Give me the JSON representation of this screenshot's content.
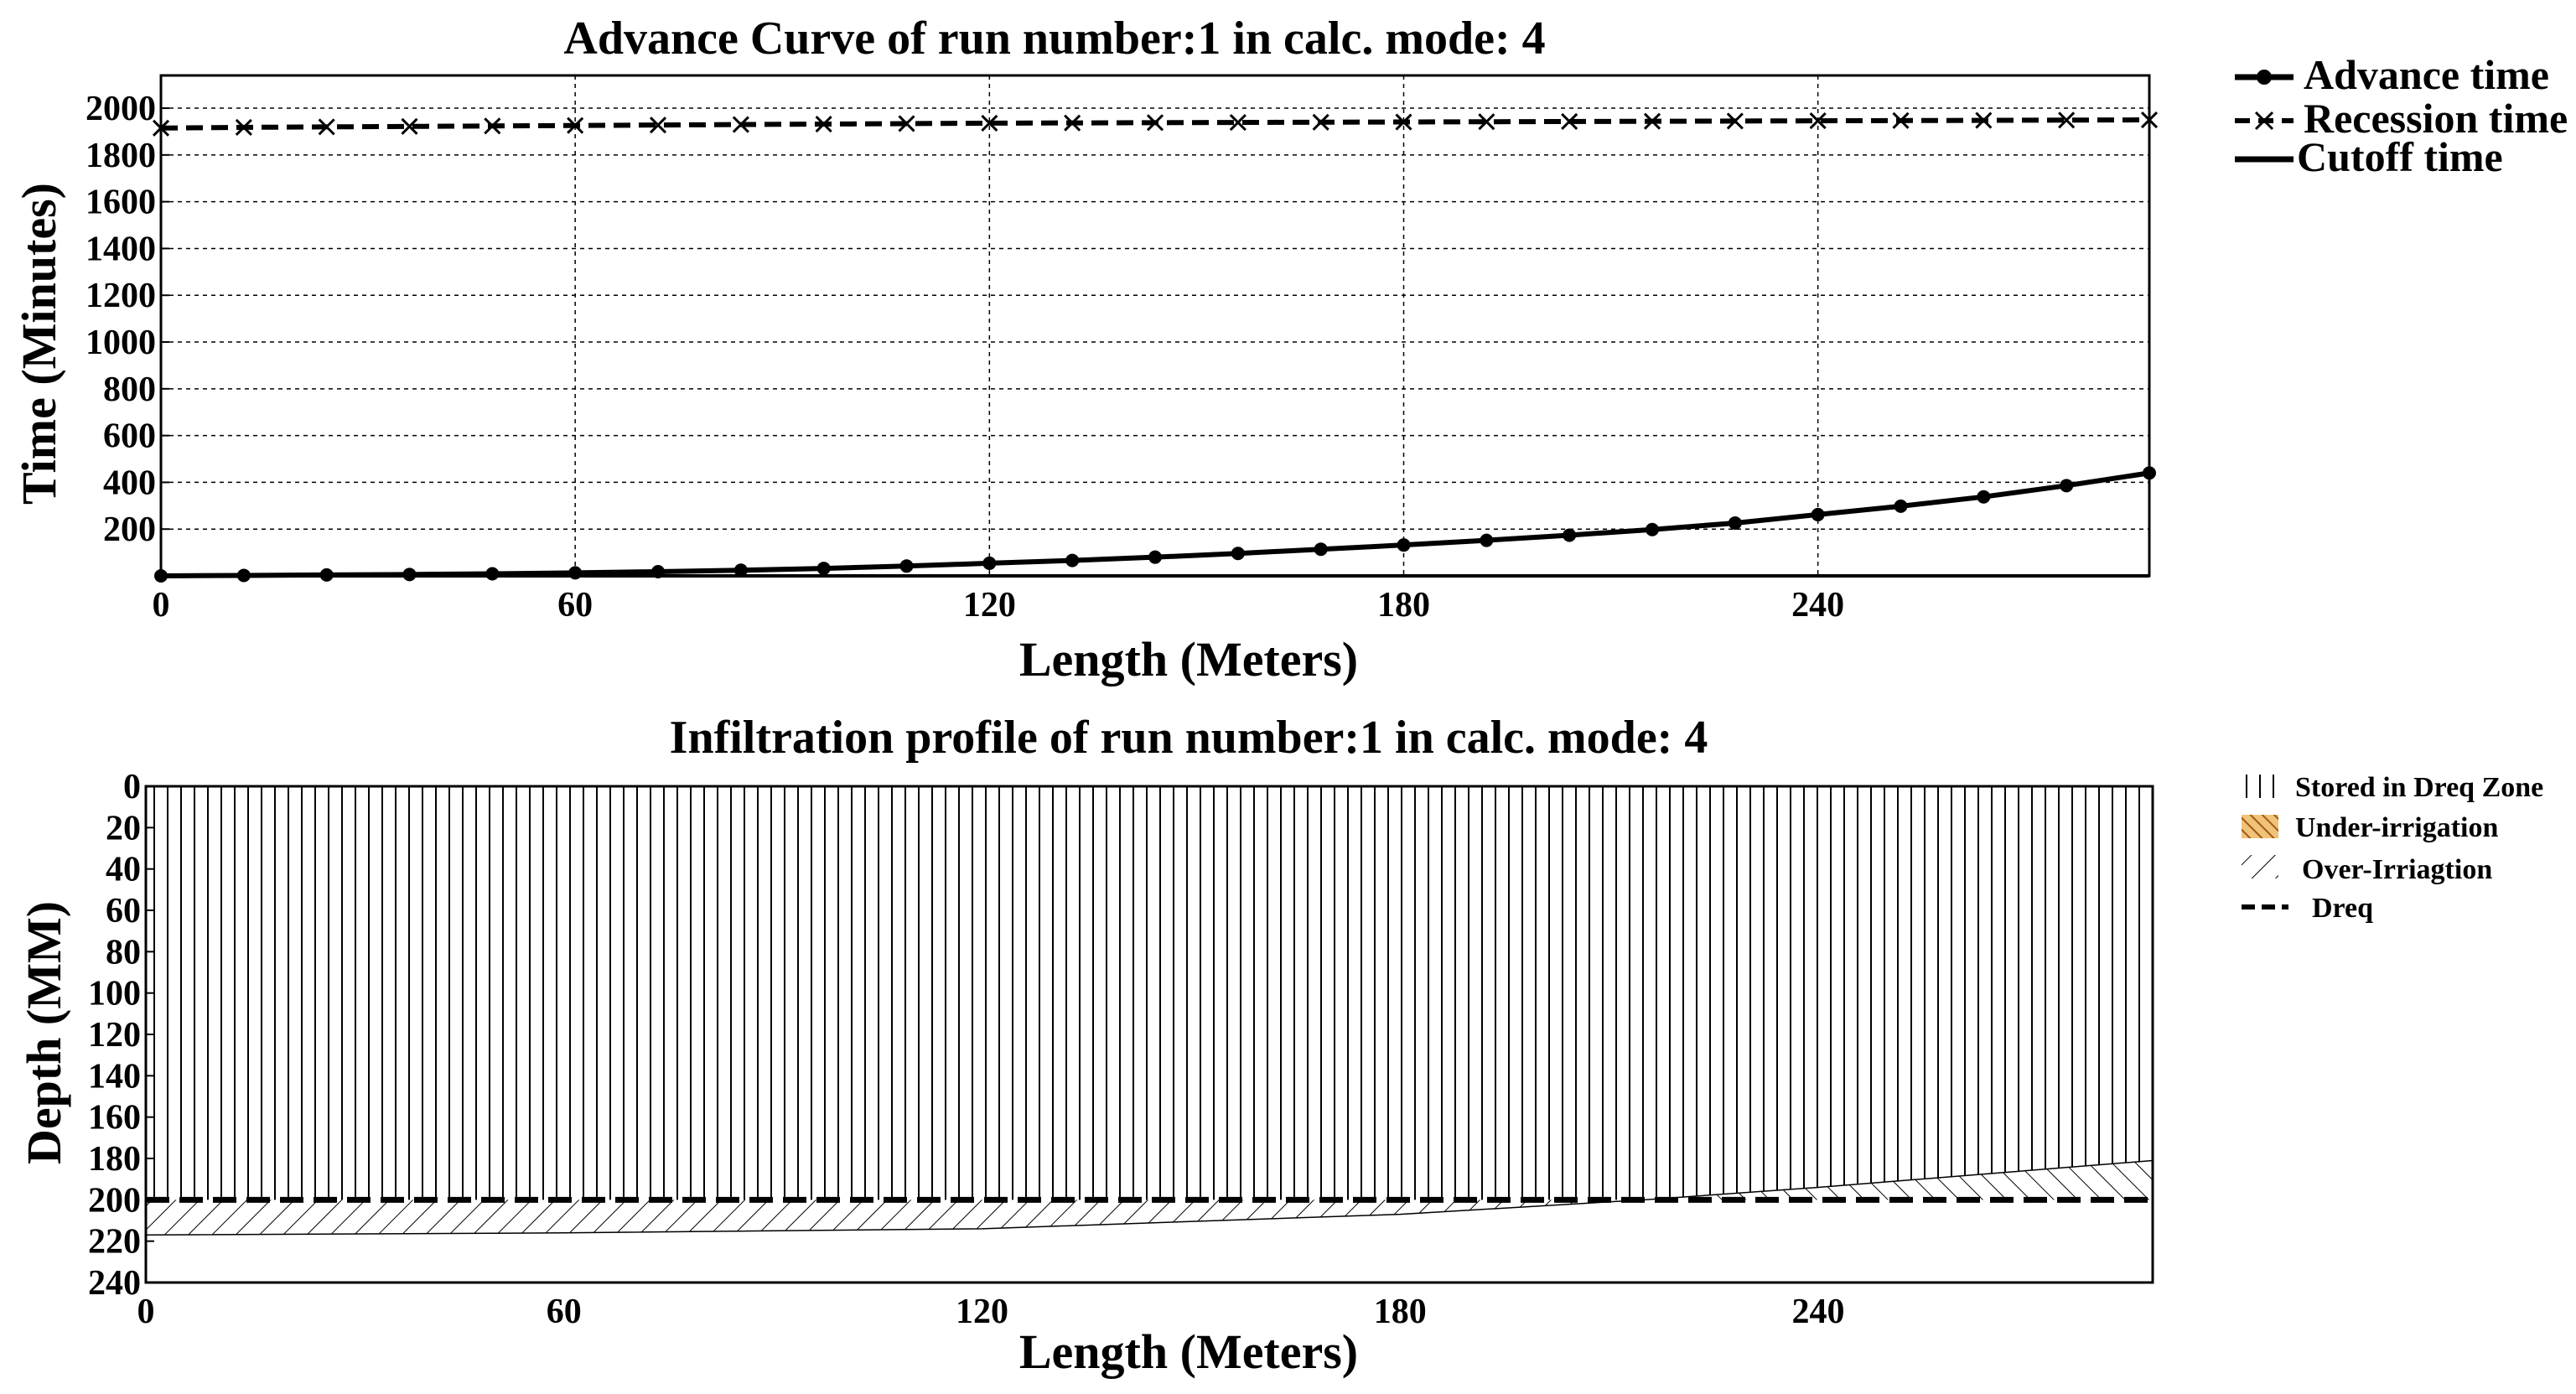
{
  "chart_data": [
    {
      "type": "line",
      "title": "Advance Curve of run number:1 in calc. mode: 4",
      "xlabel": "Length (Meters)",
      "ylabel": "Time (Minutes)",
      "xlim": [
        0,
        288
      ],
      "ylim": [
        0,
        2140
      ],
      "x_ticks": [
        0,
        60,
        120,
        180,
        240
      ],
      "y_ticks": [
        200,
        400,
        600,
        800,
        1000,
        1200,
        1400,
        1600,
        1800,
        2000
      ],
      "grid": true,
      "legend": {
        "position": "right-top",
        "entries": [
          "Advance time",
          "Recession time",
          "Cutoff time"
        ]
      },
      "series": [
        {
          "name": "Advance time",
          "x": [
            0,
            12,
            24,
            36,
            48,
            60,
            72,
            84,
            96,
            108,
            120,
            132,
            144,
            156,
            168,
            180,
            192,
            204,
            216,
            228,
            240,
            252,
            264,
            276,
            288
          ],
          "y": [
            0,
            2,
            4,
            6,
            9,
            13,
            18,
            24,
            32,
            42,
            54,
            66,
            80,
            96,
            114,
            132,
            152,
            174,
            198,
            226,
            262,
            298,
            338,
            386,
            440
          ]
        },
        {
          "name": "Recession time",
          "x": [
            0,
            12,
            24,
            36,
            48,
            60,
            72,
            84,
            96,
            108,
            120,
            132,
            144,
            156,
            168,
            180,
            192,
            204,
            216,
            228,
            240,
            252,
            264,
            276,
            288
          ],
          "y": [
            1915,
            1918,
            1920,
            1922,
            1924,
            1926,
            1928,
            1930,
            1932,
            1934,
            1936,
            1937,
            1938,
            1939,
            1940,
            1941,
            1942,
            1943,
            1944,
            1945,
            1946,
            1947,
            1948,
            1949,
            1950
          ]
        },
        {
          "name": "Cutoff time",
          "x": [
            0,
            288
          ],
          "y": [
            0,
            0
          ]
        }
      ]
    },
    {
      "type": "area",
      "title": "Infiltration profile of run number:1 in calc. mode: 4",
      "xlabel": "Length (Meters)",
      "ylabel": "Depth (MM)",
      "xlim": [
        0,
        288
      ],
      "ylim": [
        0,
        240
      ],
      "y_inverted": true,
      "x_ticks": [
        0,
        60,
        120,
        180,
        240
      ],
      "y_ticks": [
        0,
        20,
        40,
        60,
        80,
        100,
        120,
        140,
        160,
        180,
        200,
        220,
        240
      ],
      "legend": {
        "position": "right-top",
        "entries": [
          "Stored in Dreq Zone",
          "Under-irrigation",
          "Over-Irriagtion",
          "Dreq"
        ]
      },
      "dreq": 200,
      "infiltrated_depth": {
        "x": [
          0,
          60,
          120,
          180,
          215,
          240,
          288
        ],
        "y": [
          217,
          216,
          214,
          207,
          200,
          194,
          181
        ]
      },
      "series": [
        {
          "name": "Stored in Dreq Zone",
          "fill": "vertical-hatch"
        },
        {
          "name": "Under-irrigation",
          "fill": "diagonal-hatch",
          "color": "#e8a33d"
        },
        {
          "name": "Over-Irriagtion",
          "fill": "back-diagonal-hatch"
        },
        {
          "name": "Dreq",
          "style": "dashed",
          "value": 200
        }
      ]
    }
  ]
}
